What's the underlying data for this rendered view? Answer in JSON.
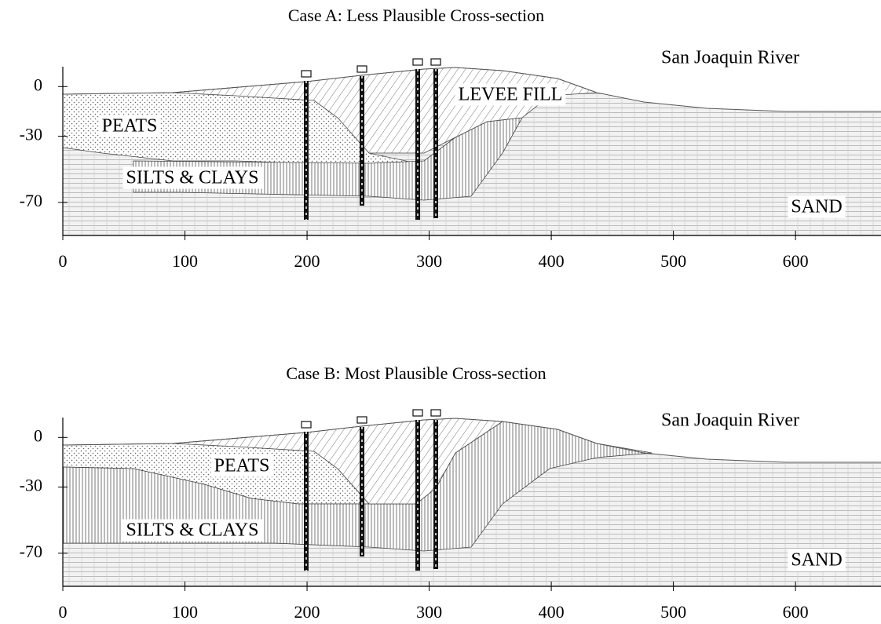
{
  "chart_data": [
    {
      "type": "cross-section",
      "title": "Case A: Less Plausible Cross-section",
      "xlim": [
        0,
        670
      ],
      "ylim": [
        -90,
        12
      ],
      "xticks": [
        0,
        100,
        200,
        300,
        400,
        500,
        600
      ],
      "yticks": [
        0,
        -30,
        -70
      ],
      "annotations": [
        "San Joaquin River",
        "LEVEE FILL",
        "PEATS",
        "SILTS & CLAYS",
        "SAND"
      ]
    },
    {
      "type": "cross-section",
      "title": "Case B: Most Plausible Cross-section",
      "xlim": [
        0,
        670
      ],
      "ylim": [
        -90,
        12
      ],
      "xticks": [
        0,
        100,
        200,
        300,
        400,
        500,
        600
      ],
      "yticks": [
        0,
        -30,
        -70
      ],
      "annotations": [
        "San Joaquin River",
        "PEATS",
        "SILTS & CLAYS",
        "SAND"
      ]
    }
  ]
}
